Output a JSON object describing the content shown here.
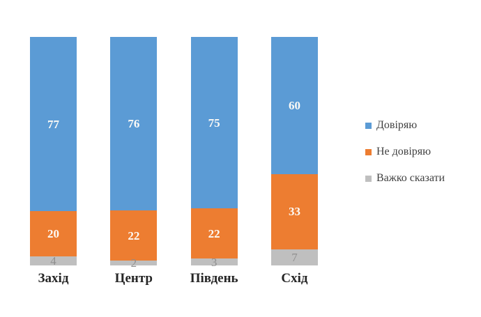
{
  "chart_data": {
    "type": "bar",
    "variant": "stacked-percent",
    "orientation": "vertical",
    "title": "",
    "categories": [
      "Захід",
      "Центр",
      "Південь",
      "Схід"
    ],
    "series": [
      {
        "name": "Довіряю",
        "color": "#5B9BD5",
        "label_color": "#fcfaf6",
        "values": [
          77,
          76,
          75,
          60
        ]
      },
      {
        "name": "Не довіряю",
        "color": "#ED7D31",
        "label_color": "#fcfaf6",
        "values": [
          20,
          22,
          22,
          33
        ]
      },
      {
        "name": "Важко сказати",
        "color": "#BFBFBF",
        "label_color": "#8f8f8f",
        "values": [
          4,
          2,
          3,
          7
        ]
      }
    ],
    "data_labels": true,
    "legend_position": "right",
    "axes_visible": false,
    "grid": false,
    "background": "#ffffff"
  }
}
